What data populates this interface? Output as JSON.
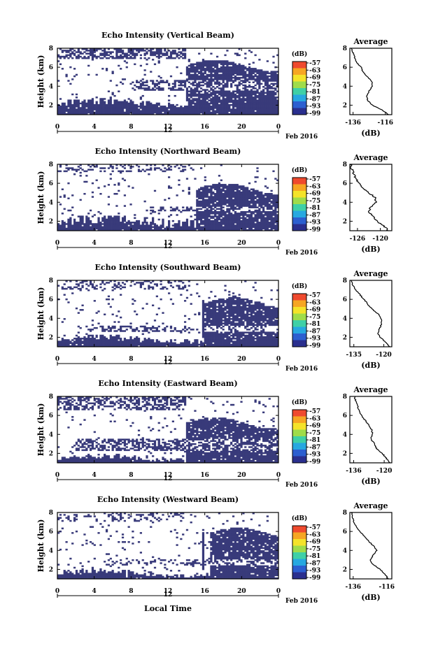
{
  "chart_data": [
    {
      "type": "heatmap",
      "title": "Echo Intensity (Vertical Beam)",
      "xlabel": "",
      "ylabel": "Height (km)",
      "xlim": [
        0,
        24
      ],
      "ylim": [
        1,
        8
      ],
      "x_ticks": [
        "0",
        "4",
        "8",
        "12",
        "16",
        "20",
        "0"
      ],
      "y_ticks": [
        "2",
        "4",
        "6",
        "8"
      ],
      "date_label": "12",
      "date_suffix": "Feb 2016",
      "colorbar": {
        "title": "(dB)",
        "labels": [
          "-57",
          "-63",
          "-69",
          "-75",
          "-81",
          "-87",
          "-93",
          "-99"
        ],
        "min": -99,
        "max": -57
      },
      "fill_color": "#383a7a",
      "field": {
        "base_top": 2.2,
        "base_jitter": 0.3,
        "band": [
          3.6,
          4.6
        ],
        "band_density": 0.55,
        "band_start": 8,
        "high_fill_start": 14,
        "high_top": 6.2,
        "upper_noise": 0.55,
        "upper_band": [
          6.9,
          8.0
        ],
        "plume_x": null,
        "seed": 11
      },
      "average": {
        "title": "Average",
        "xlabel": "(dB)",
        "x_ticks": [
          "-136",
          "-116"
        ],
        "xlim": [
          -138,
          -112
        ],
        "profile": [
          [
            1.0,
            -114
          ],
          [
            1.5,
            -118
          ],
          [
            2.0,
            -124
          ],
          [
            2.5,
            -127
          ],
          [
            3.0,
            -127.5
          ],
          [
            3.5,
            -126
          ],
          [
            4.0,
            -124
          ],
          [
            4.5,
            -124.5
          ],
          [
            5.0,
            -127
          ],
          [
            5.5,
            -130
          ],
          [
            6.0,
            -131
          ],
          [
            6.5,
            -134
          ],
          [
            7.0,
            -135
          ],
          [
            7.5,
            -136
          ],
          [
            8.0,
            -137
          ]
        ]
      }
    },
    {
      "type": "heatmap",
      "title": "Echo Intensity (Northward Beam)",
      "xlabel": "",
      "ylabel": "Height (km)",
      "xlim": [
        0,
        24
      ],
      "ylim": [
        1,
        8
      ],
      "x_ticks": [
        "0",
        "4",
        "8",
        "12",
        "16",
        "20",
        "0"
      ],
      "y_ticks": [
        "2",
        "4",
        "6",
        "8"
      ],
      "date_label": "12",
      "date_suffix": "Feb 2016",
      "colorbar": {
        "title": "(dB)",
        "labels": [
          "-57",
          "-63",
          "-69",
          "-75",
          "-81",
          "-87",
          "-93",
          "-99"
        ],
        "min": -99,
        "max": -57
      },
      "fill_color": "#383a7a",
      "field": {
        "base_top": 2.0,
        "base_jitter": 0.5,
        "band": [
          3.0,
          3.6
        ],
        "band_density": 0.45,
        "band_start": 10,
        "high_fill_start": 15,
        "high_top": 5.4,
        "upper_noise": 0.35,
        "upper_band": [
          7.2,
          8.0
        ],
        "plume_x": null,
        "seed": 23
      },
      "average": {
        "title": "Average",
        "xlabel": "(dB)",
        "x_ticks": [
          "-126",
          "-120"
        ],
        "xlim": [
          -128,
          -117
        ],
        "profile": [
          [
            1.0,
            -118
          ],
          [
            1.5,
            -119
          ],
          [
            2.0,
            -121
          ],
          [
            2.5,
            -122
          ],
          [
            3.0,
            -123
          ],
          [
            3.5,
            -122.5
          ],
          [
            4.0,
            -121
          ],
          [
            4.5,
            -121.5
          ],
          [
            5.0,
            -123
          ],
          [
            5.5,
            -124.5
          ],
          [
            6.0,
            -125.5
          ],
          [
            6.5,
            -126.5
          ],
          [
            7.0,
            -127
          ],
          [
            7.5,
            -127.5
          ],
          [
            8.0,
            -127.8
          ]
        ]
      }
    },
    {
      "type": "heatmap",
      "title": "Echo Intensity (Southward Beam)",
      "xlabel": "",
      "ylabel": "Height (km)",
      "xlim": [
        0,
        24
      ],
      "ylim": [
        1,
        8
      ],
      "x_ticks": [
        "0",
        "4",
        "8",
        "12",
        "16",
        "20",
        "0"
      ],
      "y_ticks": [
        "2",
        "4",
        "6",
        "8"
      ],
      "date_label": "12",
      "date_suffix": "Feb 2016",
      "colorbar": {
        "title": "(dB)",
        "labels": [
          "-57",
          "-63",
          "-69",
          "-75",
          "-81",
          "-87",
          "-93",
          "-99"
        ],
        "min": -99,
        "max": -57
      },
      "fill_color": "#383a7a",
      "field": {
        "base_top": 1.8,
        "base_jitter": 0.3,
        "band": [
          2.6,
          3.2
        ],
        "band_density": 0.35,
        "band_start": 3,
        "high_fill_start": 16,
        "high_top": 5.6,
        "upper_noise": 0.3,
        "upper_band": [
          7.0,
          8.0
        ],
        "plume_x": 15.8,
        "seed": 37
      },
      "average": {
        "title": "Average",
        "xlabel": "(dB)",
        "x_ticks": [
          "-135",
          "-120"
        ],
        "xlim": [
          -137,
          -116
        ],
        "profile": [
          [
            1.0,
            -117
          ],
          [
            1.5,
            -119
          ],
          [
            2.0,
            -122
          ],
          [
            2.5,
            -123
          ],
          [
            3.0,
            -122
          ],
          [
            3.5,
            -121
          ],
          [
            4.0,
            -121.5
          ],
          [
            4.5,
            -123
          ],
          [
            5.0,
            -126
          ],
          [
            5.5,
            -128
          ],
          [
            6.0,
            -130
          ],
          [
            6.5,
            -132
          ],
          [
            7.0,
            -134
          ],
          [
            7.5,
            -135.5
          ],
          [
            8.0,
            -136.5
          ]
        ]
      }
    },
    {
      "type": "heatmap",
      "title": "Echo Intensity (Eastward Beam)",
      "xlabel": "",
      "ylabel": "Height (km)",
      "xlim": [
        0,
        24
      ],
      "ylim": [
        1,
        8
      ],
      "x_ticks": [
        "0",
        "4",
        "8",
        "12",
        "16",
        "20",
        "0"
      ],
      "y_ticks": [
        "2",
        "4",
        "6",
        "8"
      ],
      "date_label": "12",
      "date_suffix": "Feb 2016",
      "colorbar": {
        "title": "(dB)",
        "labels": [
          "-57",
          "-63",
          "-69",
          "-75",
          "-81",
          "-87",
          "-93",
          "-99"
        ],
        "min": -99,
        "max": -57
      },
      "fill_color": "#383a7a",
      "field": {
        "base_top": 1.5,
        "base_jitter": 0.25,
        "band": [
          2.2,
          3.6
        ],
        "band_density": 0.55,
        "band_start": 2,
        "high_fill_start": 14,
        "high_top": 5.2,
        "upper_noise": 0.5,
        "upper_band": [
          6.6,
          8.0
        ],
        "plume_x": null,
        "seed": 53
      },
      "average": {
        "title": "Average",
        "xlabel": "(dB)",
        "x_ticks": [
          "-136",
          "-120"
        ],
        "xlim": [
          -138,
          -116
        ],
        "profile": [
          [
            1.0,
            -117
          ],
          [
            1.5,
            -119
          ],
          [
            2.0,
            -121
          ],
          [
            2.5,
            -124
          ],
          [
            3.0,
            -125
          ],
          [
            3.5,
            -127
          ],
          [
            4.0,
            -126
          ],
          [
            4.5,
            -126.5
          ],
          [
            5.0,
            -128
          ],
          [
            5.5,
            -130
          ],
          [
            6.0,
            -132
          ],
          [
            6.5,
            -133
          ],
          [
            7.0,
            -134
          ],
          [
            7.5,
            -135
          ],
          [
            8.0,
            -135.5
          ]
        ]
      }
    },
    {
      "type": "heatmap",
      "title": "Echo Intensity (Westward Beam)",
      "xlabel": "Local Time",
      "ylabel": "Height (km)",
      "xlim": [
        0,
        24
      ],
      "ylim": [
        1,
        8
      ],
      "x_ticks": [
        "0",
        "4",
        "8",
        "12",
        "16",
        "20",
        "0"
      ],
      "y_ticks": [
        "2",
        "4",
        "6",
        "8"
      ],
      "date_label": "12",
      "date_suffix": "Feb 2016",
      "colorbar": {
        "title": "(dB)",
        "labels": [
          "-57",
          "-63",
          "-69",
          "-75",
          "-81",
          "-87",
          "-93",
          "-99"
        ],
        "min": -99,
        "max": -57
      },
      "fill_color": "#383a7a",
      "field": {
        "base_top": 1.6,
        "base_jitter": 0.25,
        "band": [
          2.4,
          3.0
        ],
        "band_density": 0.3,
        "band_start": 5,
        "high_fill_start": 16.5,
        "high_top": 5.8,
        "upper_noise": 0.25,
        "upper_band": [
          7.0,
          8.0
        ],
        "plume_x": 15.8,
        "seed": 71
      },
      "average": {
        "title": "Average",
        "xlabel": "(dB)",
        "x_ticks": [
          "-136",
          "-116"
        ],
        "xlim": [
          -138,
          -113
        ],
        "profile": [
          [
            1.0,
            -115
          ],
          [
            1.5,
            -117
          ],
          [
            2.0,
            -120
          ],
          [
            2.5,
            -124
          ],
          [
            3.0,
            -126
          ],
          [
            3.5,
            -124
          ],
          [
            4.0,
            -122
          ],
          [
            4.5,
            -124
          ],
          [
            5.0,
            -127
          ],
          [
            5.5,
            -129.5
          ],
          [
            6.0,
            -132
          ],
          [
            6.5,
            -134
          ],
          [
            7.0,
            -135.5
          ],
          [
            7.5,
            -136.5
          ],
          [
            8.0,
            -137
          ]
        ]
      }
    }
  ]
}
